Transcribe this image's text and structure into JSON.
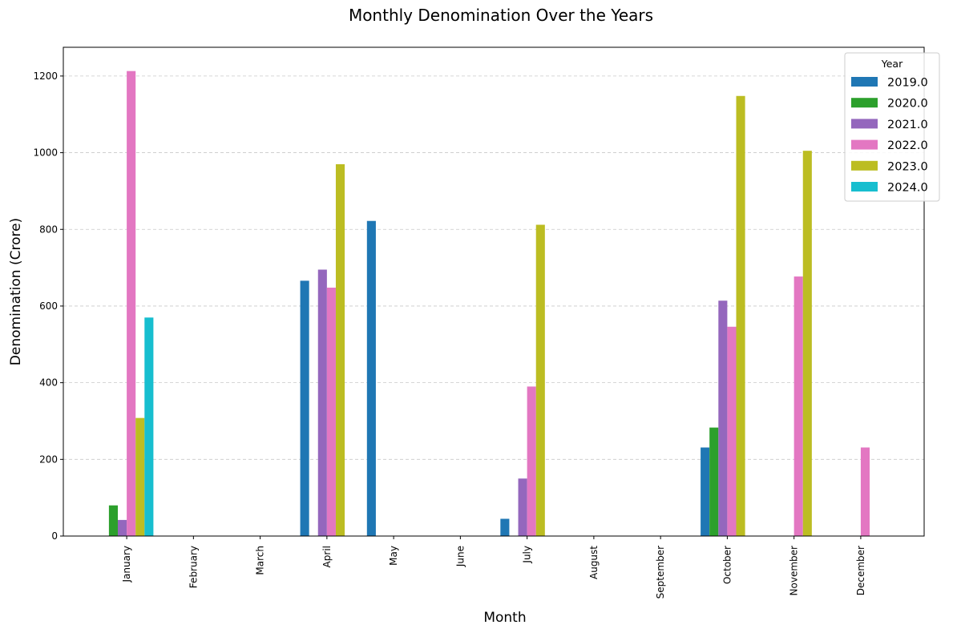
{
  "chart_data": {
    "type": "bar",
    "title": "Monthly Denomination Over the Years",
    "xlabel": "Month",
    "ylabel": "Denomination (Crore)",
    "ylim": [
      0,
      1275
    ],
    "yticks": [
      0,
      200,
      400,
      600,
      800,
      1000,
      1200
    ],
    "grid": "y dashed",
    "legend_title": "Year",
    "legend_position": "top-right",
    "categories": [
      "January",
      "February",
      "March",
      "April",
      "May",
      "June",
      "July",
      "August",
      "September",
      "October",
      "November",
      "December"
    ],
    "series": [
      {
        "name": "2019.0",
        "color": "#1f77b4",
        "values": [
          0,
          0,
          0,
          666,
          822,
          0,
          45,
          0,
          0,
          231,
          0,
          0
        ]
      },
      {
        "name": "2020.0",
        "color": "#2ca02c",
        "values": [
          80,
          0,
          0,
          0,
          0,
          0,
          0,
          0,
          0,
          283,
          0,
          0
        ]
      },
      {
        "name": "2021.0",
        "color": "#9467bd",
        "values": [
          42,
          0,
          0,
          695,
          0,
          0,
          150,
          0,
          0,
          614,
          0,
          0
        ]
      },
      {
        "name": "2022.0",
        "color": "#e377c2",
        "values": [
          1213,
          0,
          0,
          648,
          0,
          0,
          390,
          0,
          0,
          546,
          677,
          231
        ]
      },
      {
        "name": "2023.0",
        "color": "#bcbd22",
        "values": [
          308,
          0,
          0,
          970,
          0,
          0,
          812,
          0,
          0,
          1148,
          1005,
          0
        ]
      },
      {
        "name": "2024.0",
        "color": "#17becf",
        "values": [
          570,
          0,
          0,
          0,
          0,
          0,
          0,
          0,
          0,
          0,
          0,
          0
        ]
      }
    ]
  }
}
